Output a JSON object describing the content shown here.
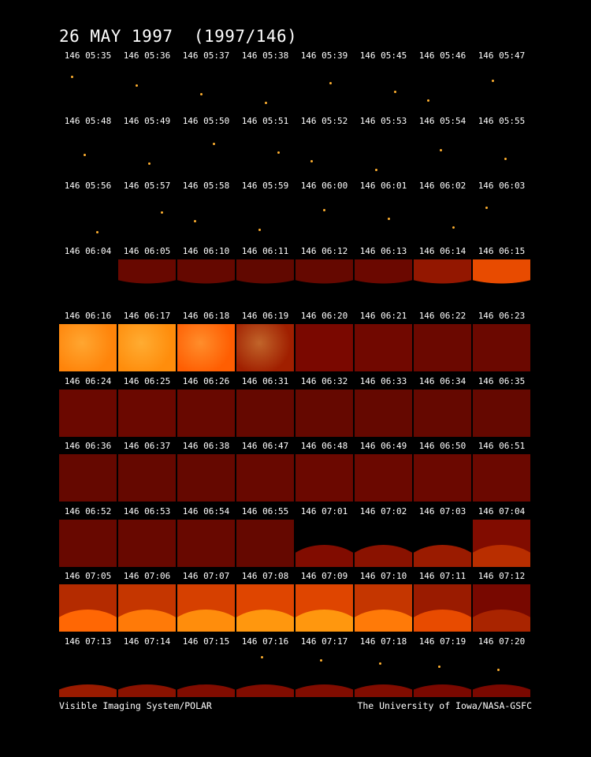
{
  "header": {
    "title": "26 MAY 1997  (1997/146)"
  },
  "footer": {
    "left": "Visible Imaging System/POLAR",
    "right": "The University of Iowa/NASA-GSFC"
  },
  "frames": [
    {
      "t": "146 05:35",
      "v": 0,
      "s": "star"
    },
    {
      "t": "146 05:36",
      "v": 0,
      "s": "star"
    },
    {
      "t": "146 05:37",
      "v": 0,
      "s": "star"
    },
    {
      "t": "146 05:38",
      "v": 0,
      "s": "star"
    },
    {
      "t": "146 05:39",
      "v": 0,
      "s": "star"
    },
    {
      "t": "146 05:45",
      "v": 0,
      "s": "star"
    },
    {
      "t": "146 05:46",
      "v": 0,
      "s": "star"
    },
    {
      "t": "146 05:47",
      "v": 0,
      "s": "star"
    },
    {
      "t": "146 05:48",
      "v": 0,
      "s": "star"
    },
    {
      "t": "146 05:49",
      "v": 0,
      "s": "star"
    },
    {
      "t": "146 05:50",
      "v": 0,
      "s": "star"
    },
    {
      "t": "146 05:51",
      "v": 0,
      "s": "star"
    },
    {
      "t": "146 05:52",
      "v": 0,
      "s": "star"
    },
    {
      "t": "146 05:53",
      "v": 0,
      "s": "star"
    },
    {
      "t": "146 05:54",
      "v": 0,
      "s": "star"
    },
    {
      "t": "146 05:55",
      "v": 0,
      "s": "star"
    },
    {
      "t": "146 05:56",
      "v": 0,
      "s": "star"
    },
    {
      "t": "146 05:57",
      "v": 0,
      "s": "star"
    },
    {
      "t": "146 05:58",
      "v": 0,
      "s": "star"
    },
    {
      "t": "146 05:59",
      "v": 0,
      "s": "star"
    },
    {
      "t": "146 06:00",
      "v": 0,
      "s": "star"
    },
    {
      "t": "146 06:01",
      "v": 0,
      "s": "star"
    },
    {
      "t": "146 06:02",
      "v": 0,
      "s": "star"
    },
    {
      "t": "146 06:03",
      "v": 0,
      "s": "star"
    },
    {
      "t": "146 06:04",
      "v": 0,
      "s": "dark"
    },
    {
      "t": "146 06:05",
      "v": 0.14,
      "s": "edge"
    },
    {
      "t": "146 06:10",
      "v": 0.13,
      "s": "edge"
    },
    {
      "t": "146 06:11",
      "v": 0.12,
      "s": "edge"
    },
    {
      "t": "146 06:12",
      "v": 0.13,
      "s": "edge"
    },
    {
      "t": "146 06:13",
      "v": 0.15,
      "s": "edge"
    },
    {
      "t": "146 06:14",
      "v": 0.28,
      "s": "edge"
    },
    {
      "t": "146 06:15",
      "v": 0.55,
      "s": "edge"
    },
    {
      "t": "146 06:16",
      "v": 0.85,
      "s": "full"
    },
    {
      "t": "146 06:17",
      "v": 0.9,
      "s": "full"
    },
    {
      "t": "146 06:18",
      "v": 0.65,
      "s": "full"
    },
    {
      "t": "146 06:19",
      "v": 0.32,
      "s": "full"
    },
    {
      "t": "146 06:20",
      "v": 0.2,
      "s": "full"
    },
    {
      "t": "146 06:21",
      "v": 0.17,
      "s": "full"
    },
    {
      "t": "146 06:22",
      "v": 0.15,
      "s": "full"
    },
    {
      "t": "146 06:23",
      "v": 0.15,
      "s": "full"
    },
    {
      "t": "146 06:24",
      "v": 0.15,
      "s": "full"
    },
    {
      "t": "146 06:25",
      "v": 0.15,
      "s": "full"
    },
    {
      "t": "146 06:26",
      "v": 0.14,
      "s": "full"
    },
    {
      "t": "146 06:31",
      "v": 0.13,
      "s": "full"
    },
    {
      "t": "146 06:32",
      "v": 0.13,
      "s": "full"
    },
    {
      "t": "146 06:33",
      "v": 0.13,
      "s": "full"
    },
    {
      "t": "146 06:34",
      "v": 0.13,
      "s": "full"
    },
    {
      "t": "146 06:35",
      "v": 0.13,
      "s": "full"
    },
    {
      "t": "146 06:36",
      "v": 0.13,
      "s": "full"
    },
    {
      "t": "146 06:37",
      "v": 0.13,
      "s": "full"
    },
    {
      "t": "146 06:38",
      "v": 0.13,
      "s": "full"
    },
    {
      "t": "146 06:47",
      "v": 0.14,
      "s": "full"
    },
    {
      "t": "146 06:48",
      "v": 0.15,
      "s": "full"
    },
    {
      "t": "146 06:49",
      "v": 0.15,
      "s": "full"
    },
    {
      "t": "146 06:50",
      "v": 0.15,
      "s": "full"
    },
    {
      "t": "146 06:51",
      "v": 0.15,
      "s": "full"
    },
    {
      "t": "146 06:52",
      "v": 0.14,
      "s": "full"
    },
    {
      "t": "146 06:53",
      "v": 0.14,
      "s": "full"
    },
    {
      "t": "146 06:54",
      "v": 0.14,
      "s": "full"
    },
    {
      "t": "146 06:55",
      "v": 0.13,
      "s": "full"
    },
    {
      "t": "146 07:01",
      "v": 0.22,
      "s": "limb"
    },
    {
      "t": "146 07:02",
      "v": 0.25,
      "s": "limb"
    },
    {
      "t": "146 07:03",
      "v": 0.3,
      "s": "limb"
    },
    {
      "t": "146 07:04",
      "v": 0.4,
      "s": "limb"
    },
    {
      "t": "146 07:05",
      "v": 0.7,
      "s": "limb"
    },
    {
      "t": "146 07:06",
      "v": 0.8,
      "s": "limb"
    },
    {
      "t": "146 07:07",
      "v": 0.9,
      "s": "limb"
    },
    {
      "t": "146 07:08",
      "v": 0.95,
      "s": "limb"
    },
    {
      "t": "146 07:09",
      "v": 0.95,
      "s": "limb"
    },
    {
      "t": "146 07:10",
      "v": 0.8,
      "s": "limb"
    },
    {
      "t": "146 07:11",
      "v": 0.55,
      "s": "limb"
    },
    {
      "t": "146 07:12",
      "v": 0.35,
      "s": "limb"
    },
    {
      "t": "146 07:13",
      "v": 0.3,
      "s": "low"
    },
    {
      "t": "146 07:14",
      "v": 0.25,
      "s": "low"
    },
    {
      "t": "146 07:15",
      "v": 0.22,
      "s": "low"
    },
    {
      "t": "146 07:16",
      "v": 0.22,
      "s": "low"
    },
    {
      "t": "146 07:17",
      "v": 0.22,
      "s": "low"
    },
    {
      "t": "146 07:18",
      "v": 0.22,
      "s": "low"
    },
    {
      "t": "146 07:19",
      "v": 0.2,
      "s": "low"
    },
    {
      "t": "146 07:20",
      "v": 0.2,
      "s": "low"
    }
  ]
}
